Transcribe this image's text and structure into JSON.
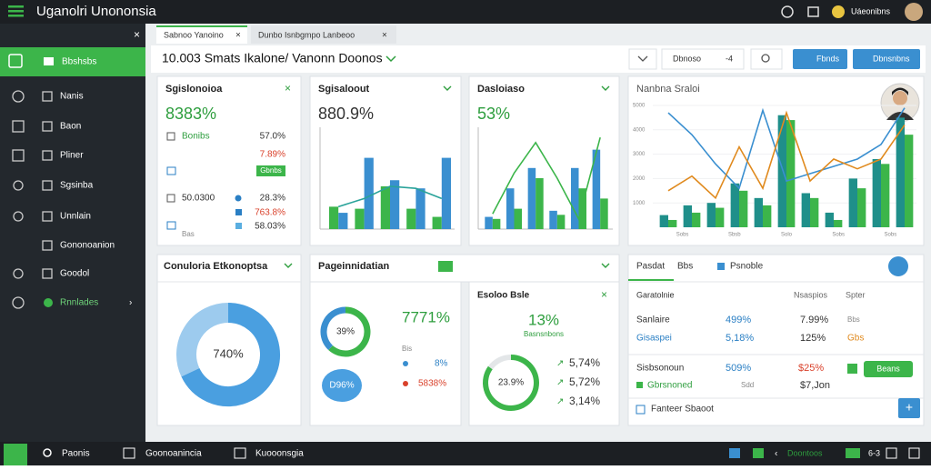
{
  "app": {
    "title": "Uganolri Unononsia",
    "user": "Uáeonibns"
  },
  "sidebar": [
    "Bbshsbs",
    "Nanis",
    "Baon",
    "Pliner",
    "Sgsinba",
    "Unnlain",
    "Gononoanion",
    "Goodol",
    "Rnnlades"
  ],
  "tabs": [
    "Sabnoo Yanoino",
    "Dunbo Isnbgmpo Lanbeoo"
  ],
  "header": {
    "title": "10.003 Smats Ikalone/ Vanonn Doonos",
    "search": "Dbnoso",
    "search_hint": "-4",
    "buttons": [
      "Fbnds",
      "Dbnsnbns"
    ]
  },
  "summary": {
    "title": "Sgislonoioa",
    "value": "8383%",
    "label": "Bonibs",
    "v1": "57.0%",
    "v2": "7.89%",
    "badge": "Gbnbs",
    "code": "50.0300",
    "v3": "28.3%",
    "v4": "763.8%",
    "v5": "58.03%",
    "footer": "Bas"
  },
  "chart_data": [
    {
      "type": "bar",
      "title": "Sgisaloout",
      "value": "880.9%",
      "ylim": [
        0,
        100
      ],
      "series": [
        {
          "color": "#3cb54a",
          "values": [
            22,
            20,
            42,
            20,
            12
          ]
        },
        {
          "color": "#3a8fd0",
          "values": [
            16,
            70,
            48,
            40,
            70
          ]
        }
      ],
      "lines": [
        {
          "color": "#2aa39a",
          "values": [
            22,
            30,
            42,
            40,
            30
          ]
        }
      ]
    },
    {
      "type": "bar",
      "title": "Dasloiaso",
      "value": "53%",
      "ylim": [
        0,
        100
      ],
      "series": [
        {
          "color": "#3a8fd0",
          "values": [
            12,
            40,
            60,
            18,
            60,
            78
          ]
        },
        {
          "color": "#3cb54a",
          "values": [
            10,
            20,
            50,
            14,
            40,
            30
          ]
        }
      ],
      "lines": [
        {
          "color": "#3cb54a",
          "values": [
            15,
            55,
            85,
            50,
            10,
            90
          ]
        }
      ]
    },
    {
      "type": "bar",
      "title": "Nanbna Sraloi",
      "ylim": [
        0,
        5000
      ],
      "yticks": [
        5000,
        4000,
        3000,
        2000,
        1000
      ],
      "xlabels": [
        "Sobs",
        "Sbsb",
        "Solo",
        "Sobs",
        "Sobs"
      ],
      "series": [
        {
          "color": "#1f8f8a",
          "values": [
            500,
            900,
            1000,
            1800,
            1200,
            4600,
            1400,
            600,
            2000,
            2800,
            4500
          ]
        },
        {
          "color": "#3cb54a",
          "values": [
            300,
            600,
            800,
            1500,
            900,
            4400,
            1200,
            300,
            1600,
            2600,
            3800
          ]
        }
      ],
      "lines": [
        {
          "color": "#3a8fd0",
          "values": [
            4700,
            3800,
            2600,
            1600,
            4800,
            1900,
            2200,
            2500,
            2800,
            3400,
            4900
          ]
        },
        {
          "color": "#e08a1e",
          "values": [
            1500,
            2100,
            1200,
            3300,
            1600,
            4700,
            1900,
            2800,
            2400,
            2800,
            4200
          ]
        }
      ]
    },
    {
      "type": "pie",
      "title": "Conuloria Etkonoptsa",
      "center": "740%",
      "values": [
        68,
        32
      ],
      "colors": [
        "#4a9fe0",
        "#9dcbee"
      ]
    },
    {
      "type": "pie",
      "title": "Pageinnidatian",
      "center": "39%",
      "value": "7771%",
      "caption": "Bis",
      "values": [
        62,
        38
      ],
      "colors": [
        "#3cb54a",
        "#3a8fd0"
      ],
      "legend": [
        {
          "color": "#3a8fd0",
          "label": "8%"
        },
        {
          "color": "#d9412b",
          "label": "5838%"
        }
      ],
      "badge_value": "D96%"
    },
    {
      "type": "pie",
      "title": "Esoloo Bsle",
      "value": "13%",
      "caption": "Basnsnbons",
      "center": "23.9%",
      "values": [
        85,
        15
      ],
      "colors": [
        "#3cb54a",
        "#e3e6e8"
      ],
      "notes": [
        "5,74%",
        "5,72%",
        "3,14%"
      ]
    }
  ],
  "table": {
    "tabs": [
      "Pasdat",
      "Bbs",
      "Psnoble"
    ],
    "columns": [
      "Garatolnie",
      "Nsaspios",
      "Spter"
    ],
    "rows": [
      [
        "Sanlaire",
        "499%",
        "7.99%",
        "Bbs"
      ],
      [
        "Gisaspei",
        "5,18%",
        "125%",
        "Gbs"
      ],
      [
        "Sisbsonoun",
        "509%",
        "$25%"
      ],
      [
        "Gbrsnoned",
        "Sdd",
        "$7,Jon"
      ]
    ],
    "button": "Beans",
    "footer": "Fanteer Sbaoot"
  },
  "taskbar": {
    "items": [
      "Paonis",
      "Goonoanincia",
      "Kuooonsgia"
    ],
    "status": "Doontoos",
    "time": "6-3"
  }
}
